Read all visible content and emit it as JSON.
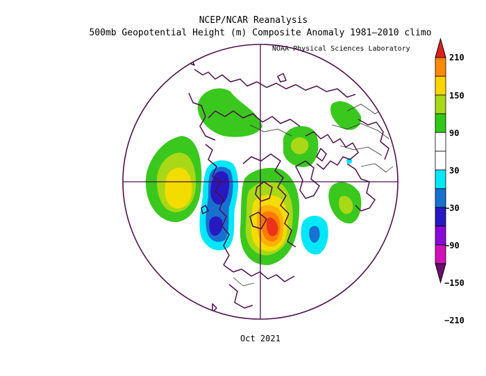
{
  "title_line1": "NCEP/NCAR Reanalysis",
  "title_line2": "500mb Geopotential Height (m) Composite Anomaly 1981–2010 climo",
  "credit": "NOAA Physical Sciences Laboratory",
  "period": "Oct 2021",
  "colorbar": {
    "labels": [
      "210",
      "150",
      "90",
      "30",
      "−30",
      "−90",
      "−150",
      "−210"
    ],
    "colors": [
      "#e02020",
      "#ff8a00",
      "#ffd500",
      "#a8d816",
      "#30c818",
      "#ffffff",
      "#ffffff",
      "#00e8f8",
      "#1870d0",
      "#2818c0",
      "#8a08d8",
      "#d010b8",
      "#6a106a"
    ]
  },
  "colors": {
    "coast": "#4a0f4a",
    "pos_30": "#3ac81e",
    "pos_60": "#a8d816",
    "pos_90": "#f3dc00",
    "pos_120": "#ffb000",
    "pos_150": "#ff7a00",
    "pos_180": "#ea3318",
    "neg_30": "#00e8f8",
    "neg_60": "#1870d0",
    "neg_90": "#2818c0"
  }
}
